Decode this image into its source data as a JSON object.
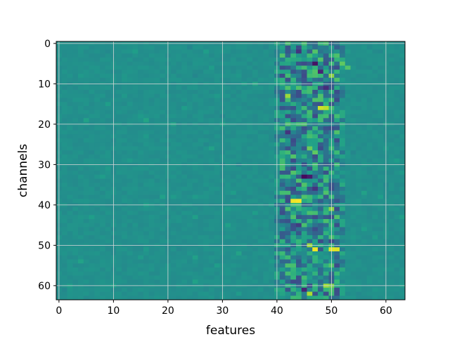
{
  "chart_data": {
    "type": "heatmap",
    "title": "",
    "xlabel": "features",
    "ylabel": "channels",
    "n_cols": 64,
    "n_rows": 64,
    "xlim": [
      0,
      63
    ],
    "ylim": [
      63,
      0
    ],
    "x_ticks": [
      0,
      10,
      20,
      30,
      40,
      50,
      60
    ],
    "y_ticks": [
      0,
      10,
      20,
      30,
      40,
      50,
      60
    ],
    "grid": true,
    "colormap": "viridis",
    "value_range": [
      -1,
      1
    ],
    "background_value": 0,
    "active_feature_band": [
      40,
      52
    ],
    "highlights": [
      {
        "channel": 39,
        "feature": 43,
        "value": 0.95
      },
      {
        "channel": 39,
        "feature": 44,
        "value": 0.98
      },
      {
        "channel": 16,
        "feature": 48,
        "value": 0.85
      },
      {
        "channel": 16,
        "feature": 49,
        "value": 0.8
      },
      {
        "channel": 51,
        "feature": 47,
        "value": 0.95
      },
      {
        "channel": 51,
        "feature": 50,
        "value": 0.92
      },
      {
        "channel": 51,
        "feature": 51,
        "value": 0.9
      },
      {
        "channel": 50,
        "feature": 46,
        "value": 0.7
      },
      {
        "channel": 13,
        "feature": 42,
        "value": 0.7
      },
      {
        "channel": 8,
        "feature": 50,
        "value": 0.65
      },
      {
        "channel": 41,
        "feature": 50,
        "value": 0.65
      },
      {
        "channel": 60,
        "feature": 49,
        "value": 0.7
      },
      {
        "channel": 60,
        "feature": 50,
        "value": 0.6
      },
      {
        "channel": 62,
        "feature": 46,
        "value": 0.75
      },
      {
        "channel": 26,
        "feature": 46,
        "value": 0.55
      },
      {
        "channel": 27,
        "feature": 47,
        "value": 0.5
      },
      {
        "channel": 5,
        "feature": 52,
        "value": 0.5
      },
      {
        "channel": 6,
        "feature": 53,
        "value": 0.45
      },
      {
        "channel": 0,
        "feature": 49,
        "value": 0.4
      },
      {
        "channel": 2,
        "feature": 47,
        "value": 0.45
      },
      {
        "channel": 33,
        "feature": 45,
        "value": -0.95
      },
      {
        "channel": 33,
        "feature": 46,
        "value": -0.85
      },
      {
        "channel": 5,
        "feature": 47,
        "value": -0.9
      },
      {
        "channel": 7,
        "feature": 48,
        "value": -0.8
      },
      {
        "channel": 2,
        "feature": 44,
        "value": -0.7
      },
      {
        "channel": 61,
        "feature": 45,
        "value": -0.8
      },
      {
        "channel": 36,
        "feature": 47,
        "value": -0.7
      },
      {
        "channel": 11,
        "feature": 49,
        "value": -0.75
      },
      {
        "channel": 22,
        "feature": 42,
        "value": -0.7
      },
      {
        "channel": 45,
        "feature": 44,
        "value": -0.65
      }
    ]
  }
}
